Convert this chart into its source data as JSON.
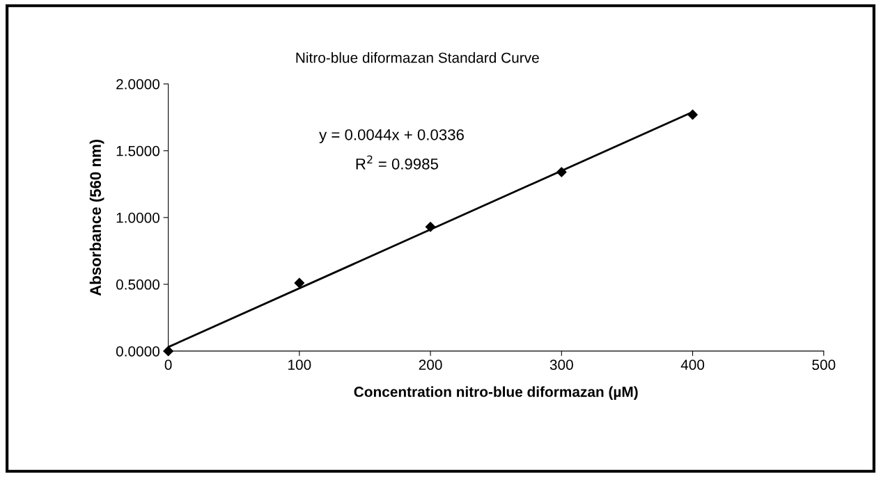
{
  "chart_data": {
    "type": "scatter",
    "title": "Nitro-blue diformazan Standard Curve",
    "xlabel": "Concentration nitro-blue diformazan (µM)",
    "ylabel": "Absorbance (560 nm)",
    "series": [
      {
        "color": "#000000",
        "marker": "diamond",
        "x": [
          0,
          100,
          200,
          300,
          400
        ],
        "values": [
          0.0,
          0.51,
          0.93,
          1.34,
          1.77
        ]
      },
      {
        "type": "line",
        "color": "#000000",
        "marker": "none",
        "line_style": "solid",
        "x": [
          0,
          400
        ],
        "values": [
          0.03,
          1.79
        ]
      }
    ],
    "annotations": [
      "y = 0.0044x + 0.0336",
      "R$^{2}$ = 0.9985"
    ],
    "xlim": [
      0,
      500
    ],
    "xticks": [
      0,
      100,
      200,
      300,
      400,
      500
    ],
    "ylim": [
      0,
      2
    ],
    "yticks": [
      {
        "value": 0,
        "label": "0.0000"
      },
      {
        "value": 0.5,
        "label": "0.5000"
      },
      {
        "value": 1,
        "label": "1.0000"
      },
      {
        "value": 1.5,
        "label": "1.5000"
      },
      {
        "value": 2,
        "label": "2.0000"
      }
    ],
    "grid": false,
    "legend": false
  }
}
